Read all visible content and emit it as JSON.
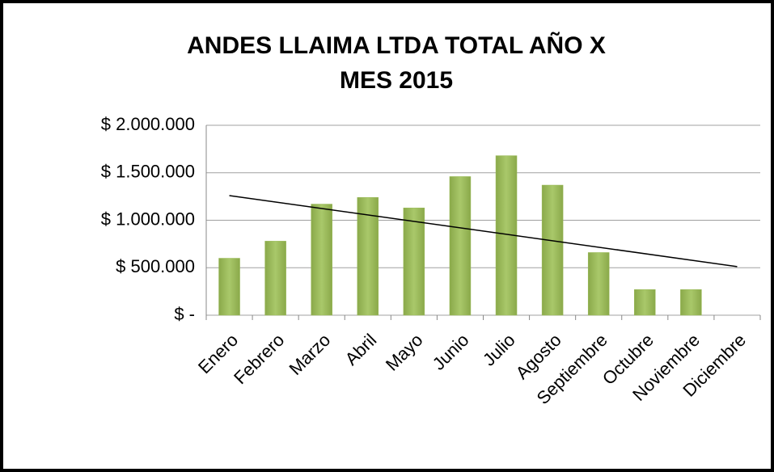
{
  "chart_data": {
    "type": "bar",
    "title": [
      "ANDES LLAIMA LTDA TOTAL AÑO X",
      "MES 2015"
    ],
    "categories": [
      "Enero",
      "Febrero",
      "Marzo",
      "Abril",
      "Mayo",
      "Junio",
      "Julio",
      "Agosto",
      "Septiembre",
      "Octubre",
      "Noviembre",
      "Diciembre"
    ],
    "values": [
      600000,
      780000,
      1170000,
      1240000,
      1130000,
      1460000,
      1680000,
      1370000,
      660000,
      270000,
      270000,
      0
    ],
    "color": "#9bbb59",
    "trendline": "linear",
    "trendline_color": "#000000",
    "ylim": [
      0,
      2000000
    ],
    "yticks": [
      {
        "value": 0,
        "label": "$ -"
      },
      {
        "value": 500000,
        "label": "$ 500.000"
      },
      {
        "value": 1000000,
        "label": "$ 1.000.000"
      },
      {
        "value": 1500000,
        "label": "$ 1.500.000"
      },
      {
        "value": 2000000,
        "label": "$ 2.000.000"
      }
    ],
    "grid": true
  }
}
